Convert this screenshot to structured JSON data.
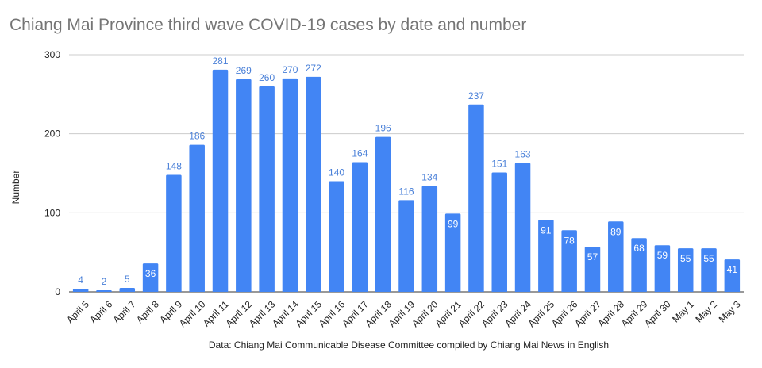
{
  "chart_data": {
    "type": "bar",
    "title": "Chiang Mai Province third wave COVID-19 cases by date and number",
    "xlabel": "",
    "ylabel": "Number",
    "ylim": [
      0,
      300
    ],
    "yticks": [
      0,
      100,
      200,
      300
    ],
    "grid": true,
    "bar_color": "#4285f4",
    "label_outside_color": "#4a80d8",
    "label_inside_color": "#ffffff",
    "categories": [
      "April 5",
      "April 6",
      "April 7",
      "April 8",
      "April 9",
      "April 10",
      "April 11",
      "April 12",
      "April 13",
      "April 14",
      "April 15",
      "April 16",
      "April 17",
      "April 18",
      "April 19",
      "April 20",
      "April 21",
      "April 22",
      "April 23",
      "April 24",
      "April 25",
      "April 26",
      "April 27",
      "April 28",
      "April 29",
      "April 30",
      "May 1",
      "May 2",
      "May 3"
    ],
    "values": [
      4,
      2,
      5,
      36,
      148,
      186,
      281,
      269,
      260,
      270,
      272,
      140,
      164,
      196,
      116,
      134,
      99,
      237,
      151,
      163,
      91,
      78,
      57,
      89,
      68,
      59,
      55,
      55,
      41
    ],
    "labels_inside": [
      false,
      false,
      false,
      true,
      false,
      false,
      false,
      false,
      false,
      false,
      false,
      false,
      false,
      false,
      false,
      false,
      true,
      false,
      false,
      false,
      true,
      true,
      true,
      true,
      true,
      true,
      true,
      true,
      true
    ]
  },
  "source_note": "Data: Chiang Mai Communicable Disease Committee compiled by Chiang Mai News in English"
}
